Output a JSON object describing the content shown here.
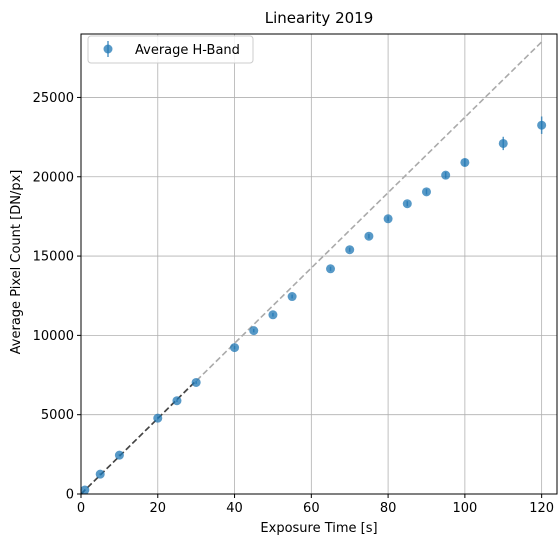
{
  "chart_data": {
    "type": "scatter",
    "title": "Linearity 2019",
    "xlabel": "Exposure Time [s]",
    "ylabel": "Average Pixel Count [DN/px]",
    "xlim": [
      0,
      124
    ],
    "ylim": [
      0,
      29000
    ],
    "xticks": [
      0,
      20,
      40,
      60,
      80,
      100,
      120
    ],
    "yticks": [
      0,
      5000,
      10000,
      15000,
      20000,
      25000
    ],
    "grid": true,
    "legend": {
      "placement": "top-left",
      "entries": [
        "Average H-Band"
      ]
    },
    "series": [
      {
        "name": "Average H-Band",
        "color": "#1f77b4",
        "points": [
          {
            "x": 1,
            "y": 250,
            "err": 60
          },
          {
            "x": 5,
            "y": 1250,
            "err": 60
          },
          {
            "x": 10,
            "y": 2450,
            "err": 60
          },
          {
            "x": 20,
            "y": 4780,
            "err": 80
          },
          {
            "x": 25,
            "y": 5880,
            "err": 80
          },
          {
            "x": 30,
            "y": 7030,
            "err": 90
          },
          {
            "x": 40,
            "y": 9230,
            "err": 100
          },
          {
            "x": 45,
            "y": 10300,
            "err": 110
          },
          {
            "x": 50,
            "y": 11300,
            "err": 110
          },
          {
            "x": 55,
            "y": 12450,
            "err": 120
          },
          {
            "x": 65,
            "y": 14200,
            "err": 130
          },
          {
            "x": 70,
            "y": 15400,
            "err": 130
          },
          {
            "x": 75,
            "y": 16250,
            "err": 140
          },
          {
            "x": 80,
            "y": 17350,
            "err": 150
          },
          {
            "x": 85,
            "y": 18300,
            "err": 160
          },
          {
            "x": 90,
            "y": 19050,
            "err": 170
          },
          {
            "x": 95,
            "y": 20100,
            "err": 200
          },
          {
            "x": 100,
            "y": 20900,
            "err": 250
          },
          {
            "x": 110,
            "y": 22100,
            "err": 420
          },
          {
            "x": 120,
            "y": 23250,
            "err": 550
          }
        ]
      }
    ],
    "reference_lines": [
      {
        "style": "dashed",
        "color": "#aaaaaa",
        "x": [
          0,
          120
        ],
        "y": [
          0,
          28500
        ]
      },
      {
        "style": "dashed",
        "color": "#444444",
        "x": [
          0,
          30
        ],
        "y": [
          0,
          7150
        ]
      }
    ]
  }
}
